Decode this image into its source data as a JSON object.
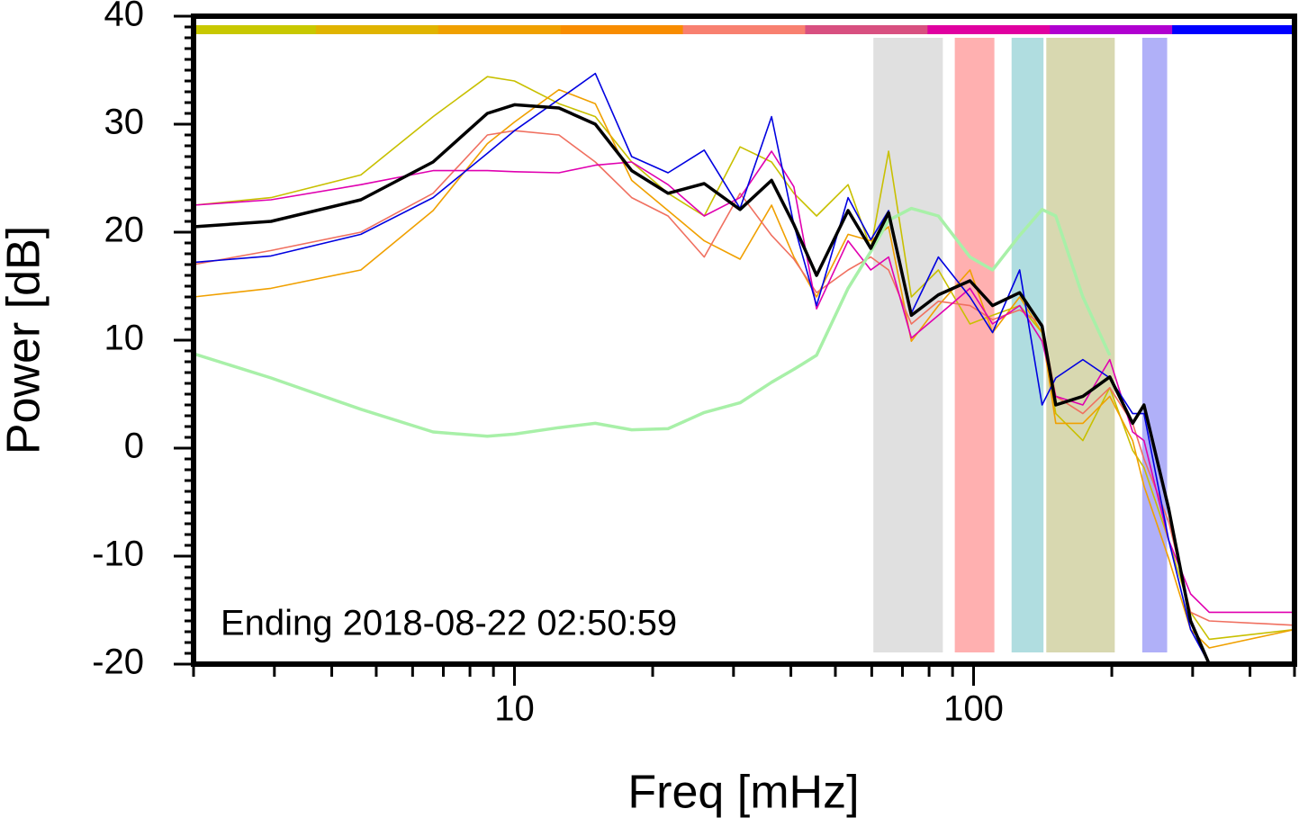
{
  "chart_data": {
    "type": "line",
    "annotation": "Ending 2018-08-22 02:50:59",
    "x_label": "Freq [mHz]",
    "y_label": "Power [dB]",
    "xscale": "log",
    "xlim": [
      2,
      500
    ],
    "ylim": [
      -20,
      40
    ],
    "xticks": [
      10,
      100
    ],
    "xminor_ticks": [
      2,
      3,
      4,
      5,
      6,
      7,
      8,
      9,
      20,
      30,
      40,
      50,
      60,
      70,
      80,
      90,
      200,
      300,
      400,
      500
    ],
    "yticks": [
      -20,
      -10,
      0,
      10,
      20,
      30,
      40
    ],
    "yminor_step": 1,
    "top_bar_colors": [
      "#c8c800",
      "#e0b400",
      "#f0a000",
      "#f88c00",
      "#f88070",
      "#d85080",
      "#e000a0",
      "#b000d0",
      "#0000ff"
    ],
    "bands": [
      {
        "x0": 60.5,
        "x1": 85.7,
        "color": "#e0e0e0"
      },
      {
        "x0": 91,
        "x1": 111,
        "color": "#ffb0b0"
      },
      {
        "x0": 121,
        "x1": 142,
        "color": "#b0dde0"
      },
      {
        "x0": 144,
        "x1": 203,
        "color": "#d8d8b0"
      },
      {
        "x0": 233,
        "x1": 264,
        "color": "#b0b0f8"
      }
    ],
    "x": [
      2.0,
      2.95,
      4.63,
      6.65,
      8.73,
      10,
      12.5,
      15,
      18,
      21.6,
      25.9,
      31,
      36.3,
      40.6,
      45.5,
      53.3,
      59.7,
      65.3,
      73.2,
      83.8,
      98.2,
      110,
      126,
      141,
      151,
      173,
      198,
      222,
      235,
      266,
      297,
      326,
      500
    ],
    "series": [
      {
        "color": "#c8c000",
        "width": 1.6,
        "values": [
          22.5,
          23.2,
          25.3,
          30.7,
          34.4,
          34,
          31.9,
          30.7,
          26.5,
          23.6,
          21.5,
          27.9,
          26.5,
          23.6,
          21.5,
          24.4,
          18.5,
          27.5,
          14,
          16.5,
          11.5,
          12.3,
          13.2,
          10.7,
          3.2,
          0.7,
          5.6,
          -0.2,
          -1.8,
          -8.5,
          -15.2,
          -17.7,
          -16.8
        ]
      },
      {
        "color": "#f0a000",
        "width": 1.6,
        "values": [
          14,
          14.8,
          16.5,
          22,
          28.2,
          30.2,
          33.2,
          31.9,
          24.8,
          22,
          19.2,
          17.5,
          22.5,
          17.7,
          14,
          19.8,
          19.2,
          20.5,
          9.9,
          13.2,
          16.5,
          10.7,
          14,
          10.7,
          2.3,
          2.3,
          4.8,
          0.7,
          -3.5,
          -10.2,
          -16.8,
          -18.5,
          -16.8
        ]
      },
      {
        "color": "#f07060",
        "width": 1.6,
        "values": [
          17,
          18.3,
          20,
          23.6,
          29,
          29.4,
          29,
          26.5,
          23.2,
          21.5,
          17.7,
          23.6,
          19.7,
          17.5,
          14.4,
          16.5,
          17.7,
          16.5,
          11.5,
          13.6,
          13.2,
          11.9,
          12.8,
          11.5,
          4.8,
          3.2,
          5.6,
          2.3,
          -1,
          -6.8,
          -15.2,
          -16,
          -16.4
        ]
      },
      {
        "color": "#e000b0",
        "width": 1.6,
        "values": [
          22.5,
          23,
          24.4,
          25.7,
          25.7,
          25.6,
          25.5,
          26.2,
          26.5,
          24.4,
          21.5,
          23.2,
          27.5,
          24.2,
          12.9,
          19.2,
          16.5,
          17.7,
          10.2,
          12.3,
          14.8,
          11.5,
          13.2,
          9.9,
          4.8,
          4,
          8.2,
          1.5,
          0.7,
          -8.5,
          -13.5,
          -15.2,
          -15.2
        ]
      },
      {
        "color": "#0000e0",
        "width": 1.6,
        "values": [
          17.2,
          17.8,
          19.8,
          23.2,
          27.3,
          29.4,
          32.3,
          34.7,
          27,
          25.5,
          27.6,
          22.2,
          30.7,
          20.7,
          13.2,
          23.2,
          19.3,
          22,
          12.5,
          17.7,
          14,
          10.7,
          16.5,
          4,
          6.5,
          8.2,
          6.5,
          3.2,
          3.2,
          -8.5,
          -16.8,
          -20,
          -20
        ]
      },
      {
        "color": "#a8f0a8",
        "width": 3.5,
        "values": [
          8.75,
          6.5,
          3.6,
          1.5,
          1.1,
          1.3,
          1.9,
          2.3,
          1.7,
          1.8,
          3.3,
          4.2,
          6.1,
          7.3,
          8.6,
          14.8,
          18.2,
          21.1,
          22.2,
          21.5,
          17.7,
          16.5,
          19.7,
          22.1,
          21.5,
          14,
          8.6,
          null,
          null,
          null,
          null,
          null,
          null
        ]
      },
      {
        "color": "#000000",
        "width": 3.5,
        "values": [
          20.5,
          21,
          23,
          26.5,
          31,
          31.8,
          31.5,
          30,
          25.7,
          23.6,
          24.5,
          22.1,
          24.8,
          20.7,
          16,
          22,
          18.5,
          21.8,
          12.3,
          14.2,
          15.5,
          13.2,
          14.4,
          11.3,
          4,
          4.8,
          6.6,
          2.3,
          4,
          -5.6,
          -16,
          -20,
          -20
        ]
      }
    ]
  }
}
